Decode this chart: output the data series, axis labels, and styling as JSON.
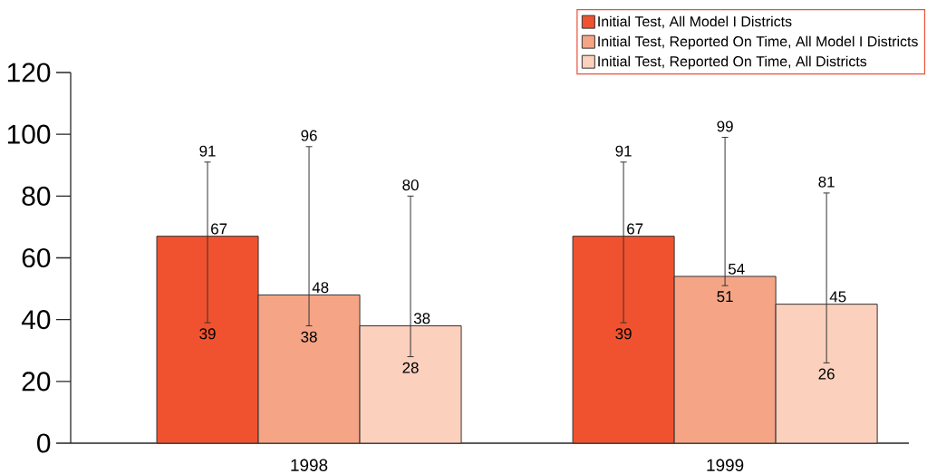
{
  "chart_data": {
    "type": "bar",
    "categories": [
      "1998",
      "1999"
    ],
    "series": [
      {
        "name": "Initial Test, All Model I Districts",
        "color": "#f0522f",
        "values": [
          67,
          67
        ],
        "errors": [
          [
            39,
            91
          ],
          [
            39,
            91
          ]
        ]
      },
      {
        "name": "Initial Test, Reported On Time, All Model I Districts",
        "color": "#f5a586",
        "values": [
          48,
          54
        ],
        "errors": [
          [
            38,
            96
          ],
          [
            51,
            99
          ]
        ]
      },
      {
        "name": "Initial Test, Reported On Time, All Districts",
        "color": "#fbd0bd",
        "values": [
          38,
          45
        ],
        "errors": [
          [
            28,
            80
          ],
          [
            26,
            81
          ]
        ]
      }
    ],
    "ylim": [
      0,
      120
    ],
    "yticks": [
      0,
      20,
      40,
      60,
      80,
      100,
      120
    ],
    "annotations": [
      "91",
      "39",
      "91",
      "39",
      "96",
      "38",
      "99",
      "51",
      "80",
      "28",
      "81",
      "26"
    ],
    "data_labels": true,
    "legend": "top right",
    "grid": false
  }
}
